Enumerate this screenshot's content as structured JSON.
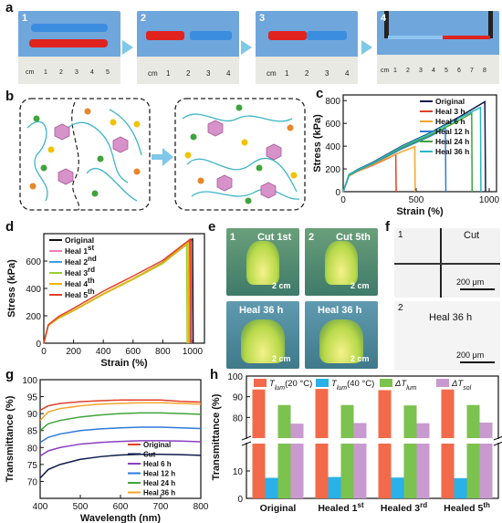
{
  "labels": {
    "a": "a",
    "b": "b",
    "c": "c",
    "d": "d",
    "e": "e",
    "f": "f",
    "g": "g",
    "h": "h"
  },
  "panel_a": {
    "steps": [
      "1",
      "2",
      "3",
      "4"
    ],
    "ruler_unit": "cm",
    "ruler_nums_1": [
      "1",
      "2",
      "3",
      "4",
      "5"
    ],
    "ruler_nums_2": [
      "1",
      "2",
      "3",
      "4"
    ],
    "ruler_nums_3": [
      "1",
      "2",
      "3",
      "4"
    ],
    "ruler_nums_4": [
      "1",
      "2",
      "3",
      "4",
      "5",
      "6",
      "7",
      "8"
    ],
    "colors": {
      "blue": "#3b8de0",
      "red": "#e0231f",
      "mat": "#5d9ad6"
    }
  },
  "panel_e": {
    "tiles": [
      {
        "num": "1",
        "text": "Cut 1st",
        "scale": "2 cm"
      },
      {
        "num": "2",
        "text": "Cut 5th",
        "scale": "2 cm"
      },
      {
        "num": "",
        "text": "Heal 36 h",
        "scale": "2 cm"
      },
      {
        "num": "",
        "text": "Heal 36 h",
        "scale": "2 cm"
      }
    ]
  },
  "panel_f": {
    "tiles": [
      {
        "num": "1",
        "text": "Cut",
        "scale": "200 μm"
      },
      {
        "num": "2",
        "text": "Heal 36 h",
        "scale": "200 μm"
      }
    ]
  },
  "chart_data": [
    {
      "id": "c",
      "type": "line",
      "xlabel": "Strain (%)",
      "ylabel": "Stress (kPa)",
      "xlim": [
        0,
        1050
      ],
      "ylim": [
        0,
        850
      ],
      "xticks": [
        0,
        500,
        1000
      ],
      "yticks": [
        0,
        200,
        400,
        600,
        800
      ],
      "legend": "top-right",
      "series": [
        {
          "name": "Original",
          "color": "#0c1c4c",
          "x": [
            0,
            40,
            100,
            200,
            400,
            600,
            800,
            970,
            975
          ],
          "y": [
            0,
            150,
            195,
            255,
            400,
            520,
            660,
            790,
            0
          ]
        },
        {
          "name": "Heal  3 h",
          "color": "#e2402a",
          "x": [
            0,
            40,
            100,
            200,
            300,
            360,
            363
          ],
          "y": [
            0,
            140,
            180,
            230,
            290,
            330,
            0
          ]
        },
        {
          "name": "Heal  6 h",
          "color": "#f5a52a",
          "x": [
            0,
            40,
            100,
            200,
            300,
            400,
            490,
            493
          ],
          "y": [
            0,
            140,
            180,
            235,
            295,
            350,
            395,
            0
          ]
        },
        {
          "name": "Heal  12 h",
          "color": "#2f7ad8",
          "x": [
            0,
            40,
            100,
            200,
            400,
            600,
            700,
            703
          ],
          "y": [
            0,
            145,
            185,
            245,
            375,
            490,
            560,
            0
          ]
        },
        {
          "name": "Heal  24 h",
          "color": "#3fa43c",
          "x": [
            0,
            40,
            100,
            200,
            400,
            600,
            800,
            880,
            883
          ],
          "y": [
            0,
            145,
            188,
            248,
            385,
            500,
            630,
            690,
            0
          ]
        },
        {
          "name": "Heal  36 h",
          "color": "#28b6c3",
          "x": [
            0,
            40,
            100,
            200,
            400,
            600,
            800,
            940,
            943
          ],
          "y": [
            0,
            150,
            192,
            250,
            395,
            515,
            650,
            740,
            0
          ]
        }
      ]
    },
    {
      "id": "d",
      "type": "line",
      "xlabel": "Strain (%)",
      "ylabel": "Stress (kPa)",
      "xlim": [
        0,
        1080
      ],
      "ylim": [
        0,
        800
      ],
      "xticks": [
        0,
        200,
        400,
        600,
        800,
        1000
      ],
      "yticks": [
        0,
        200,
        400,
        600
      ],
      "legend": "top-left",
      "series": [
        {
          "name": "Original",
          "sup": "",
          "color": "#111111",
          "x": [
            0,
            30,
            100,
            200,
            400,
            600,
            800,
            1000,
            1004
          ],
          "y": [
            0,
            130,
            185,
            240,
            360,
            470,
            590,
            760,
            0
          ]
        },
        {
          "name": "Heal  1",
          "sup": "st",
          "color": "#f07fb7",
          "x": [
            0,
            30,
            100,
            200,
            400,
            600,
            800,
            990,
            994
          ],
          "y": [
            0,
            130,
            185,
            240,
            360,
            470,
            585,
            745,
            0
          ]
        },
        {
          "name": "Heal  2",
          "sup": "nd",
          "color": "#3f9fe0",
          "x": [
            0,
            30,
            100,
            200,
            400,
            600,
            800,
            980,
            984
          ],
          "y": [
            0,
            128,
            182,
            238,
            358,
            468,
            585,
            740,
            0
          ]
        },
        {
          "name": "Heal  3",
          "sup": "rd",
          "color": "#9acd32",
          "x": [
            0,
            30,
            100,
            200,
            400,
            600,
            800,
            960,
            964
          ],
          "y": [
            0,
            128,
            183,
            238,
            357,
            466,
            582,
            725,
            0
          ]
        },
        {
          "name": "Heal  4",
          "sup": "th",
          "color": "#f2b400",
          "x": [
            0,
            30,
            100,
            200,
            400,
            600,
            800,
            970,
            974
          ],
          "y": [
            0,
            130,
            185,
            240,
            360,
            470,
            588,
            735,
            0
          ]
        },
        {
          "name": "Heal  5",
          "sup": "th",
          "color": "#e2402a",
          "x": [
            0,
            30,
            100,
            200,
            400,
            600,
            800,
            985,
            989
          ],
          "y": [
            0,
            135,
            195,
            255,
            380,
            490,
            605,
            760,
            0
          ]
        }
      ]
    },
    {
      "id": "g",
      "type": "line",
      "xlabel": "Wavelength (nm)",
      "ylabel": "Transmittance (%)",
      "xlim": [
        400,
        800
      ],
      "ylim": [
        65,
        100
      ],
      "xticks": [
        400,
        500,
        600,
        700,
        800
      ],
      "yticks": [
        70,
        75,
        80,
        85,
        90,
        95,
        100
      ],
      "legend": "bottom-right",
      "series": [
        {
          "name": "Original",
          "color": "#e2402a",
          "x": [
            400,
            420,
            450,
            500,
            550,
            600,
            650,
            700,
            750,
            800
          ],
          "y": [
            91,
            92.3,
            93,
            93.5,
            93.8,
            94,
            94,
            94,
            93.6,
            93.4
          ]
        },
        {
          "name": "Cut",
          "color": "#0c1c4c",
          "x": [
            400,
            420,
            450,
            500,
            550,
            600,
            650,
            700,
            750,
            800
          ],
          "y": [
            71,
            73.5,
            75,
            76.5,
            77.3,
            77.8,
            78,
            78,
            77.9,
            77.7
          ]
        },
        {
          "name": "Heal   6 h",
          "color": "#8a3fc0",
          "x": [
            400,
            420,
            450,
            500,
            550,
            600,
            650,
            700,
            750,
            800
          ],
          "y": [
            77.5,
            79,
            80,
            81,
            81.5,
            81.8,
            82,
            82,
            81.9,
            81.7
          ]
        },
        {
          "name": "Heal  12 h",
          "color": "#2f7ad8",
          "x": [
            400,
            420,
            450,
            500,
            550,
            600,
            650,
            700,
            750,
            800
          ],
          "y": [
            81.5,
            83,
            84,
            85,
            85.5,
            85.8,
            86,
            86,
            85.8,
            85.6
          ]
        },
        {
          "name": "Heal  24 h",
          "color": "#3fa43c",
          "x": [
            400,
            420,
            450,
            500,
            550,
            600,
            650,
            700,
            750,
            800
          ],
          "y": [
            85,
            87,
            88,
            89,
            89.6,
            90,
            90.2,
            90.2,
            90,
            89.8
          ]
        },
        {
          "name": "Heal  36 h",
          "color": "#f5a52a",
          "x": [
            400,
            420,
            450,
            500,
            550,
            600,
            650,
            700,
            750,
            800
          ],
          "y": [
            88,
            90.5,
            91.5,
            92.3,
            92.8,
            93,
            93.2,
            93.2,
            93,
            92.8
          ]
        }
      ]
    },
    {
      "id": "h",
      "type": "bar",
      "xlabel": "",
      "ylabel": "Transmittance (%)",
      "categories": [
        "Original",
        "Healed 1st",
        "Healed 3rd",
        "Healed 5th"
      ],
      "category_labels": [
        {
          "base": "Original",
          "sup": ""
        },
        {
          "base": "Healed 1",
          "sup": "st"
        },
        {
          "base": "Healed 3",
          "sup": "rd"
        },
        {
          "base": "Healed 5",
          "sup": "th"
        }
      ],
      "yticks_upper": [
        80,
        90,
        100
      ],
      "yticks_lower": [
        0,
        10
      ],
      "broken_axis": true,
      "legend": "top",
      "series": [
        {
          "name": "T lum (20 °C)",
          "sym": "T",
          "sub": "lum",
          "tail": "(20 °C)",
          "color": "#f26a4a",
          "values": [
            93.5,
            93.8,
            93.2,
            93.5
          ]
        },
        {
          "name": "T lum (40 °C)",
          "sym": "T",
          "sub": "lum",
          "tail": "(40 °C)",
          "color": "#29b1e8",
          "values": [
            7.5,
            7.8,
            7.6,
            7.4
          ]
        },
        {
          "name": "ΔT lum",
          "sym": "ΔT",
          "sub": "lum",
          "tail": "",
          "color": "#7cc24e",
          "values": [
            86,
            86,
            85.8,
            86
          ]
        },
        {
          "name": "ΔT sol",
          "sym": "ΔT",
          "sub": "sol",
          "tail": "",
          "color": "#c89ad0",
          "values": [
            77,
            77.3,
            77.2,
            77.5
          ]
        }
      ]
    }
  ]
}
